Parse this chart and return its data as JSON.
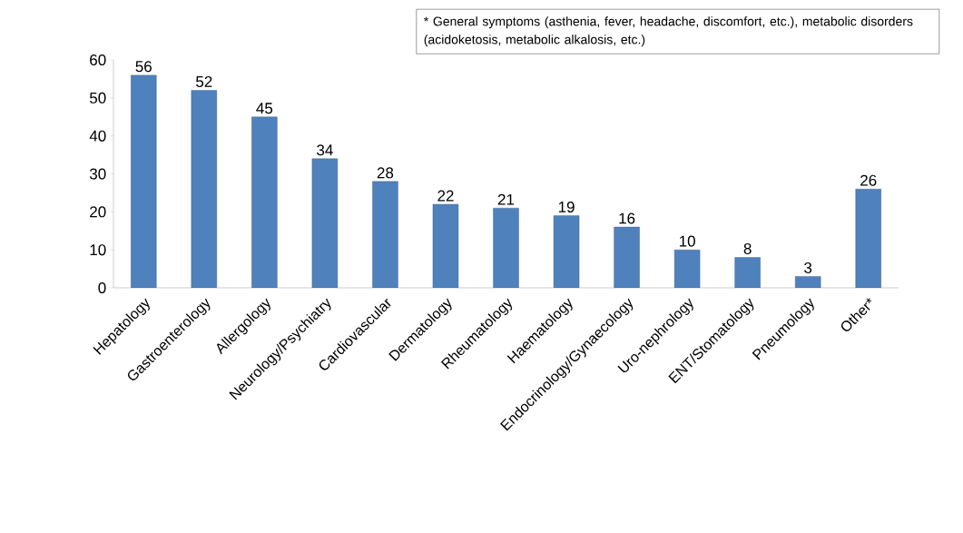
{
  "chart_data": {
    "type": "bar",
    "categories": [
      "Hepatology",
      "Gastroenterology",
      "Allergology",
      "Neurology/Psychiatry",
      "Cardiovascular",
      "Dermatology",
      "Rheumatology",
      "Haematology",
      "Endocrinology/Gynaecology",
      "Uro-nephrology",
      "ENT/Stomatology",
      "Pneumology",
      "Other*"
    ],
    "values": [
      56,
      52,
      45,
      34,
      28,
      22,
      21,
      19,
      16,
      10,
      8,
      3,
      26
    ],
    "color": "#4f81bd",
    "ylim": [
      0,
      60
    ],
    "yticks": [
      0,
      10,
      20,
      30,
      40,
      50,
      60
    ],
    "data_labels": true,
    "grid": false,
    "annotations": [
      "* General symptoms (asthenia, fever, headache, discomfort, etc.), metabolic disorders (acidoketosis, metabolic alkalosis, etc.)"
    ]
  }
}
